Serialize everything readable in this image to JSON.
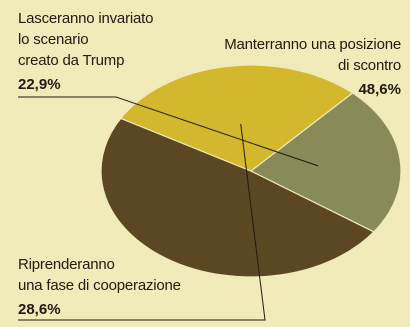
{
  "chart_data": {
    "type": "pie",
    "slices": [
      {
        "label_lines": [
          "Manterranno una posizione",
          "di scontro"
        ],
        "value": 48.6,
        "value_label": "48,6%",
        "color": "#5c4725"
      },
      {
        "label_lines": [
          "Riprenderanno",
          "una fase di cooperazione"
        ],
        "value": 28.6,
        "value_label": "28,6%",
        "color": "#d3b72d"
      },
      {
        "label_lines": [
          "Lasceranno invariato",
          "lo scenario",
          "creato da Trump"
        ],
        "value": 22.9,
        "value_label": "22,9%",
        "color": "#888a58"
      }
    ]
  }
}
